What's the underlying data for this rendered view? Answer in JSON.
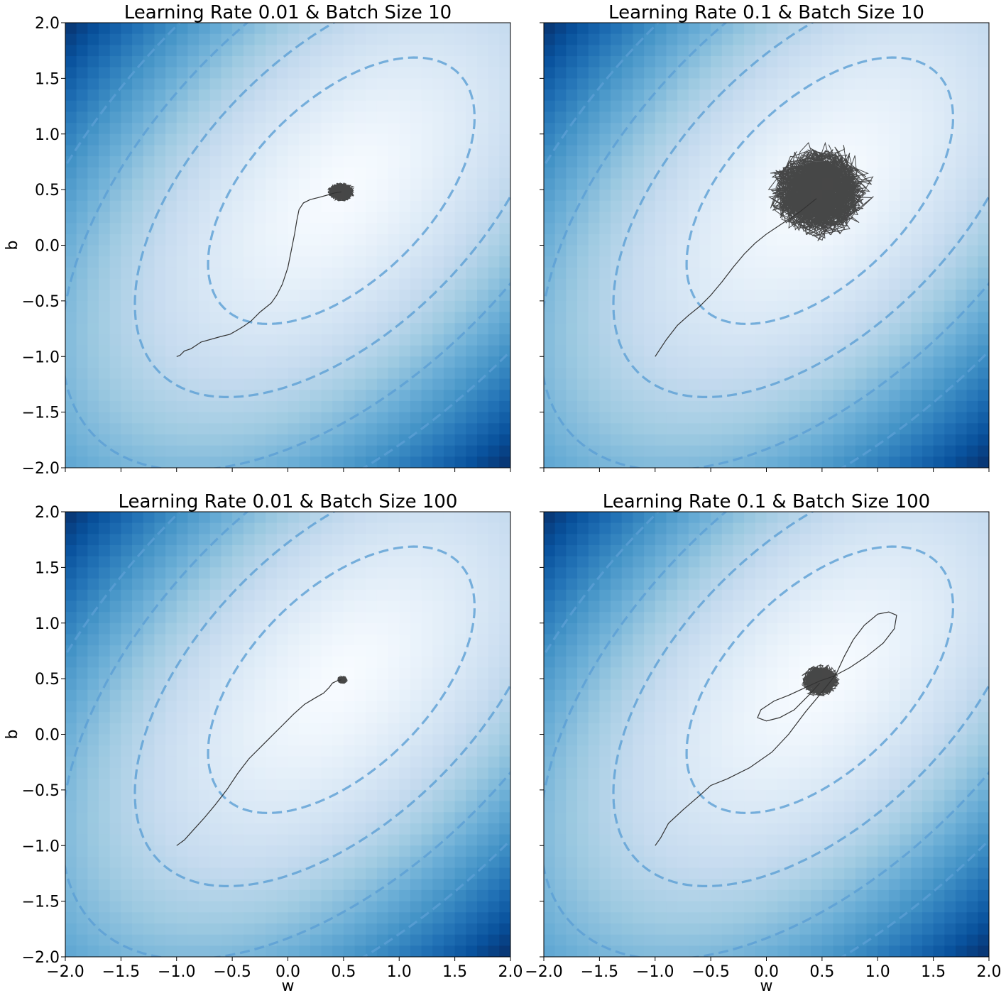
{
  "chart_data": [
    {
      "type": "heatmap",
      "title": "Learning Rate 0.01 & Batch Size 10",
      "xlabel": "",
      "ylabel": "b",
      "xlim": [
        -2.0,
        2.0
      ],
      "ylim": [
        -2.0,
        2.0
      ],
      "xticks": [
        "",
        "",
        "",
        "",
        "",
        "",
        "",
        "",
        ""
      ],
      "yticks": [
        "−2.0",
        "−1.5",
        "−1.0",
        "−0.5",
        "0.0",
        "0.5",
        "1.0",
        "1.5",
        "2.0"
      ],
      "colormap": "Blues",
      "contour_style": "dashed",
      "trajectory": {
        "start": [
          -1.0,
          -1.0
        ],
        "path": [
          [
            -1.0,
            -1.0
          ],
          [
            -0.97,
            -0.99
          ],
          [
            -0.93,
            -0.95
          ],
          [
            -0.87,
            -0.93
          ],
          [
            -0.78,
            -0.87
          ],
          [
            -0.6,
            -0.82
          ],
          [
            -0.52,
            -0.8
          ],
          [
            -0.45,
            -0.76
          ],
          [
            -0.4,
            -0.73
          ],
          [
            -0.33,
            -0.68
          ],
          [
            -0.25,
            -0.6
          ],
          [
            -0.15,
            -0.52
          ],
          [
            -0.1,
            -0.45
          ],
          [
            -0.05,
            -0.35
          ],
          [
            0.0,
            -0.2
          ],
          [
            0.03,
            -0.05
          ],
          [
            0.06,
            0.1
          ],
          [
            0.08,
            0.22
          ],
          [
            0.1,
            0.32
          ],
          [
            0.14,
            0.38
          ],
          [
            0.2,
            0.41
          ],
          [
            0.28,
            0.43
          ],
          [
            0.35,
            0.45
          ],
          [
            0.42,
            0.47
          ],
          [
            0.48,
            0.48
          ]
        ],
        "center": [
          0.48,
          0.48
        ],
        "spread": [
          0.14,
          0.1
        ]
      }
    },
    {
      "type": "heatmap",
      "title": "Learning Rate 0.1 & Batch Size 10",
      "xlabel": "",
      "ylabel": "",
      "xlim": [
        -2.0,
        2.0
      ],
      "ylim": [
        -2.0,
        2.0
      ],
      "xticks": [
        "",
        "",
        "",
        "",
        "",
        "",
        "",
        "",
        ""
      ],
      "yticks": [
        "",
        "",
        "",
        "",
        "",
        "",
        "",
        "",
        ""
      ],
      "colormap": "Blues",
      "contour_style": "dashed",
      "trajectory": {
        "start": [
          -1.0,
          -1.0
        ],
        "path": [
          [
            -1.0,
            -1.0
          ],
          [
            -0.9,
            -0.85
          ],
          [
            -0.8,
            -0.72
          ],
          [
            -0.7,
            -0.63
          ],
          [
            -0.6,
            -0.55
          ],
          [
            -0.5,
            -0.45
          ],
          [
            -0.4,
            -0.33
          ],
          [
            -0.3,
            -0.2
          ],
          [
            -0.2,
            -0.08
          ],
          [
            -0.1,
            0.02
          ],
          [
            0.0,
            0.1
          ],
          [
            0.15,
            0.2
          ],
          [
            0.3,
            0.3
          ],
          [
            0.45,
            0.42
          ]
        ],
        "center": [
          0.48,
          0.48
        ],
        "spread": [
          0.55,
          0.5
        ]
      }
    },
    {
      "type": "heatmap",
      "title": "Learning Rate 0.01 & Batch Size 100",
      "xlabel": "w",
      "ylabel": "b",
      "xlim": [
        -2.0,
        2.0
      ],
      "ylim": [
        -2.0,
        2.0
      ],
      "xticks": [
        "−2.0",
        "−1.5",
        "−1.0",
        "−0.5",
        "0.0",
        "0.5",
        "1.0",
        "1.5",
        "2.0"
      ],
      "yticks": [
        "−2.0",
        "−1.5",
        "−1.0",
        "−0.5",
        "0.0",
        "0.5",
        "1.0",
        "1.5",
        "2.0"
      ],
      "colormap": "Blues",
      "contour_style": "dashed",
      "trajectory": {
        "start": [
          -1.0,
          -1.0
        ],
        "path": [
          [
            -1.0,
            -1.0
          ],
          [
            -0.93,
            -0.95
          ],
          [
            -0.85,
            -0.86
          ],
          [
            -0.75,
            -0.75
          ],
          [
            -0.65,
            -0.63
          ],
          [
            -0.55,
            -0.5
          ],
          [
            -0.45,
            -0.35
          ],
          [
            -0.35,
            -0.22
          ],
          [
            -0.25,
            -0.12
          ],
          [
            -0.15,
            -0.02
          ],
          [
            -0.05,
            0.08
          ],
          [
            0.05,
            0.18
          ],
          [
            0.15,
            0.27
          ],
          [
            0.25,
            0.33
          ],
          [
            0.32,
            0.37
          ],
          [
            0.37,
            0.42
          ],
          [
            0.4,
            0.46
          ],
          [
            0.44,
            0.48
          ],
          [
            0.48,
            0.49
          ]
        ],
        "center": [
          0.49,
          0.49
        ],
        "spread": [
          0.05,
          0.04
        ]
      }
    },
    {
      "type": "heatmap",
      "title": "Learning Rate 0.1 & Batch Size 100",
      "xlabel": "w",
      "ylabel": "",
      "xlim": [
        -2.0,
        2.0
      ],
      "ylim": [
        -2.0,
        2.0
      ],
      "xticks": [
        "−2.0",
        "−1.5",
        "−1.0",
        "−0.5",
        "0.0",
        "0.5",
        "1.0",
        "1.5",
        "2.0"
      ],
      "yticks": [
        "",
        "",
        "",
        "",
        "",
        "",
        "",
        "",
        ""
      ],
      "colormap": "Blues",
      "contour_style": "dashed",
      "trajectory": {
        "start": [
          -1.0,
          -1.0
        ],
        "path": [
          [
            -1.0,
            -1.0
          ],
          [
            -0.95,
            -0.93
          ],
          [
            -0.88,
            -0.8
          ],
          [
            -0.75,
            -0.68
          ],
          [
            -0.6,
            -0.55
          ],
          [
            -0.5,
            -0.46
          ],
          [
            -0.35,
            -0.4
          ],
          [
            -0.15,
            -0.3
          ],
          [
            0.05,
            -0.16
          ],
          [
            0.2,
            0.0
          ],
          [
            0.35,
            0.2
          ],
          [
            0.5,
            0.38
          ],
          [
            0.58,
            0.48
          ],
          [
            0.63,
            0.55
          ],
          [
            0.7,
            0.7
          ],
          [
            0.78,
            0.85
          ],
          [
            0.88,
            0.98
          ],
          [
            1.0,
            1.08
          ],
          [
            1.1,
            1.1
          ],
          [
            1.17,
            1.07
          ],
          [
            1.15,
            0.95
          ],
          [
            1.05,
            0.82
          ],
          [
            0.9,
            0.7
          ],
          [
            0.75,
            0.6
          ],
          [
            0.6,
            0.52
          ],
          [
            0.48,
            0.48
          ],
          [
            0.35,
            0.42
          ],
          [
            0.2,
            0.35
          ],
          [
            0.07,
            0.3
          ],
          [
            -0.05,
            0.22
          ],
          [
            -0.08,
            0.15
          ],
          [
            0.0,
            0.12
          ],
          [
            0.12,
            0.15
          ],
          [
            0.25,
            0.22
          ],
          [
            0.38,
            0.35
          ],
          [
            0.48,
            0.46
          ]
        ],
        "center": [
          0.48,
          0.48
        ],
        "spread": [
          0.2,
          0.17
        ]
      }
    }
  ]
}
